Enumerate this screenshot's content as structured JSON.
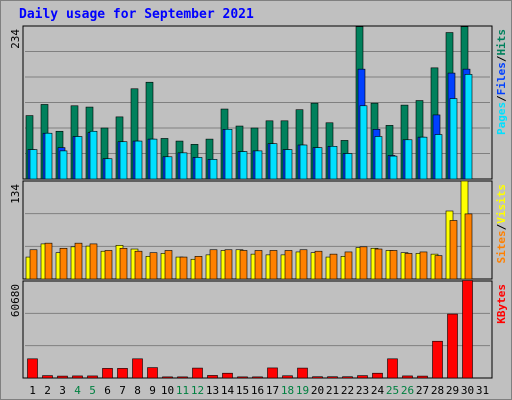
{
  "title": "Daily usage for September 2021",
  "colors": {
    "hits": "#00805c",
    "files": "#0040ff",
    "pages": "#00e0ff",
    "visits": "#ffff00",
    "sites": "#ff8000",
    "kbytes": "#ff0000",
    "today_label": "#008040",
    "weekday_label": "#000000"
  },
  "chart_data": [
    {
      "type": "bar",
      "panel": "top",
      "max_label": "234",
      "ylim": [
        0,
        234
      ],
      "legend": [
        {
          "label": "Pages",
          "sep": "/"
        },
        {
          "label": "Files",
          "sep": "/"
        },
        {
          "label": "Hits"
        }
      ],
      "categories": [
        "1",
        "2",
        "3",
        "4",
        "5",
        "6",
        "7",
        "8",
        "9",
        "10",
        "11",
        "12",
        "13",
        "14",
        "15",
        "16",
        "17",
        "18",
        "19",
        "20",
        "21",
        "22",
        "23",
        "24",
        "25",
        "26",
        "27",
        "28",
        "29",
        "30",
        "31"
      ],
      "weekend_days": [
        "4",
        "5",
        "11",
        "12",
        "18",
        "19",
        "25",
        "26"
      ],
      "series": [
        {
          "name": "Hits",
          "values": [
            97,
            114,
            73,
            112,
            110,
            78,
            95,
            138,
            148,
            62,
            58,
            53,
            61,
            107,
            81,
            78,
            89,
            89,
            106,
            116,
            86,
            59,
            233,
            116,
            82,
            113,
            120,
            170,
            224,
            233,
            0
          ]
        },
        {
          "name": "Files",
          "values": [
            45,
            70,
            48,
            65,
            71,
            31,
            57,
            58,
            61,
            34,
            40,
            33,
            30,
            76,
            42,
            43,
            54,
            45,
            52,
            48,
            50,
            39,
            168,
            76,
            36,
            60,
            64,
            98,
            162,
            168,
            0
          ]
        },
        {
          "name": "Pages",
          "values": [
            45,
            70,
            43,
            65,
            73,
            31,
            57,
            58,
            61,
            34,
            40,
            33,
            30,
            76,
            42,
            43,
            54,
            45,
            52,
            48,
            50,
            39,
            112,
            65,
            35,
            60,
            64,
            68,
            123,
            160,
            0
          ]
        }
      ]
    },
    {
      "type": "bar",
      "panel": "middle",
      "max_label": "134",
      "ylim": [
        0,
        134
      ],
      "legend": [
        {
          "label": "Sites",
          "sep": "/"
        },
        {
          "label": "Visits"
        }
      ],
      "series": [
        {
          "name": "Visits",
          "values": [
            30,
            48,
            36,
            44,
            45,
            38,
            46,
            41,
            31,
            35,
            30,
            27,
            33,
            39,
            40,
            34,
            33,
            33,
            37,
            36,
            30,
            31,
            43,
            42,
            39,
            36,
            35,
            34,
            93,
            134,
            0
          ]
        },
        {
          "name": "Sites",
          "values": [
            40,
            49,
            42,
            49,
            48,
            39,
            42,
            38,
            36,
            39,
            30,
            31,
            40,
            40,
            39,
            39,
            39,
            39,
            40,
            38,
            34,
            37,
            44,
            41,
            39,
            35,
            37,
            32,
            80,
            89,
            0
          ]
        }
      ]
    },
    {
      "type": "bar",
      "panel": "bottom",
      "max_label": "60680",
      "ylim": [
        0,
        60680
      ],
      "legend": [
        {
          "label": "KBytes"
        }
      ],
      "series": [
        {
          "name": "KBytes",
          "values": [
            12000,
            1500,
            1200,
            1300,
            1300,
            6000,
            6000,
            12000,
            6500,
            700,
            700,
            6200,
            1600,
            3000,
            700,
            700,
            6300,
            1400,
            6200,
            800,
            800,
            800,
            1500,
            3000,
            12000,
            1300,
            1200,
            23000,
            40000,
            61000,
            0
          ]
        }
      ]
    }
  ]
}
